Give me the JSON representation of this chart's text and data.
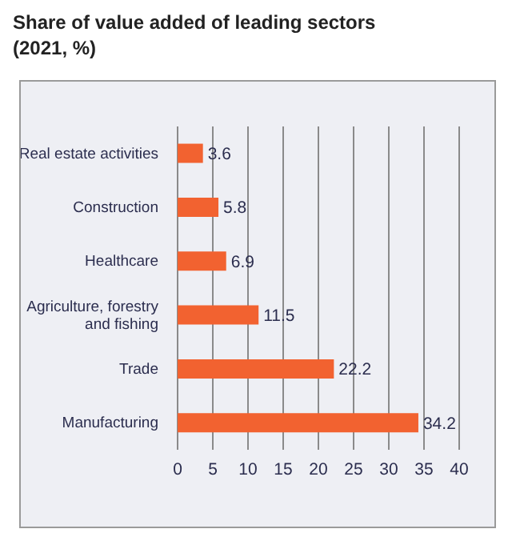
{
  "chart_data": {
    "type": "bar",
    "orientation": "horizontal",
    "title": "Share of value added of leading sectors",
    "subtitle": "(2021, %)",
    "categories": [
      "Real estate activities",
      "Construction",
      "Healthcare",
      "Agriculture, forestry and fishing",
      "Trade",
      "Manufacturing"
    ],
    "values": [
      3.6,
      5.8,
      6.9,
      11.5,
      22.2,
      34.2
    ],
    "color": "#f26230",
    "xlim": [
      0,
      40
    ],
    "xticks": [
      0,
      5,
      10,
      15,
      20,
      25,
      30,
      35,
      40
    ],
    "grid": "x",
    "data_labels": true
  }
}
